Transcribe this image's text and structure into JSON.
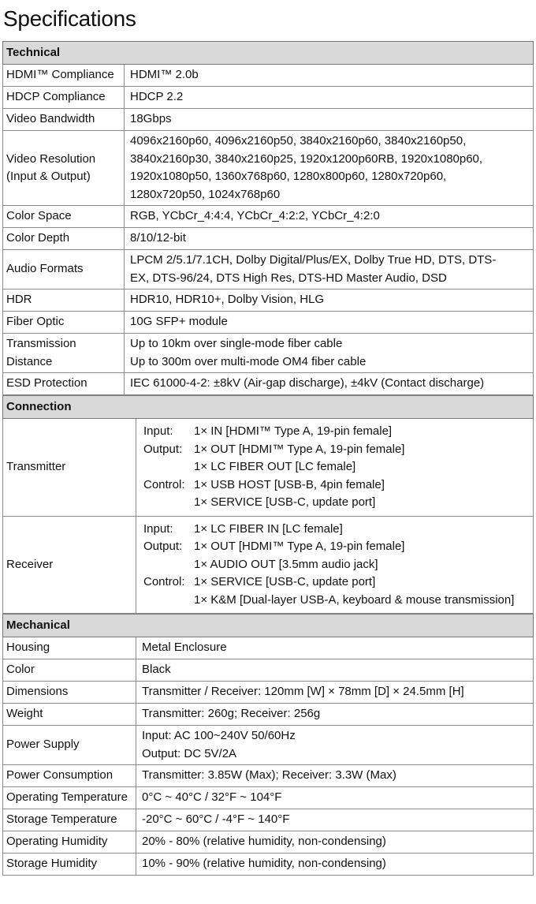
{
  "title": "Specifications",
  "sections": [
    {
      "title": "Technical",
      "rows": [
        {
          "label": [
            "HDMI™ Compliance"
          ],
          "lines": [
            "HDMI™ 2.0b"
          ]
        },
        {
          "label": [
            "HDCP Compliance"
          ],
          "lines": [
            "HDCP 2.2"
          ]
        },
        {
          "label": [
            "Video Bandwidth"
          ],
          "lines": [
            "18Gbps"
          ]
        },
        {
          "label": [
            "Video Resolution",
            "(Input & Output)"
          ],
          "lines": [
            "4096x2160p60, 4096x2160p50, 3840x2160p60, 3840x2160p50,",
            "3840x2160p30, 3840x2160p25, 1920x1200p60RB, 1920x1080p60,",
            "1920x1080p50, 1360x768p60, 1280x800p60, 1280x720p60,",
            "1280x720p50, 1024x768p60"
          ]
        },
        {
          "label": [
            "Color Space"
          ],
          "lines": [
            "RGB, YCbCr_4:4:4, YCbCr_4:2:2, YCbCr_4:2:0"
          ]
        },
        {
          "label": [
            "Color Depth"
          ],
          "lines": [
            "8/10/12-bit"
          ]
        },
        {
          "label": [
            "Audio Formats"
          ],
          "lines": [
            "LPCM 2/5.1/7.1CH, Dolby Digital/Plus/EX, Dolby True HD, DTS, DTS-",
            "EX, DTS-96/24, DTS High Res, DTS-HD Master Audio, DSD"
          ]
        },
        {
          "label": [
            "HDR"
          ],
          "lines": [
            "HDR10, HDR10+, Dolby Vision, HLG"
          ]
        },
        {
          "label": [
            "Fiber Optic"
          ],
          "lines": [
            "10G SFP+ module"
          ]
        },
        {
          "label": [
            "Transmission",
            "Distance"
          ],
          "lines": [
            "Up to 10km over single-mode fiber cable",
            "Up to 300m over multi-mode OM4 fiber cable"
          ]
        },
        {
          "label": [
            "ESD Protection"
          ],
          "lines": [
            "IEC 61000-4-2: ±8kV (Air-gap discharge), ±4kV (Contact discharge)"
          ]
        }
      ]
    },
    {
      "title": "Connection",
      "rows": [
        {
          "label": [
            "Transmitter"
          ],
          "lines": [
            {
              "key": "Input:",
              "text": "1× IN [HDMI™ Type A, 19-pin female]"
            },
            {
              "key": "Output:",
              "text": "1× OUT [HDMI™ Type A, 19-pin female]"
            },
            {
              "text": "1× LC FIBER OUT [LC female]"
            },
            {
              "key": "Control:",
              "text": "1× USB HOST [USB-B, 4pin female]"
            },
            {
              "text": "1× SERVICE [USB-C, update port]"
            }
          ]
        },
        {
          "label": [
            "Receiver"
          ],
          "lines": [
            {
              "key": "Input:",
              "text": "1× LC FIBER IN [LC female]"
            },
            {
              "key": "Output:",
              "text": "1× OUT [HDMI™ Type A, 19-pin female]"
            },
            {
              "text": "1× AUDIO OUT [3.5mm audio jack]"
            },
            {
              "key": "Control:",
              "text": "1× SERVICE [USB-C, update port]"
            },
            {
              "text": "1× K&M [Dual-layer USB-A, keyboard & mouse transmission]"
            }
          ]
        }
      ]
    },
    {
      "title": "Mechanical",
      "rows": [
        {
          "label": [
            "Housing"
          ],
          "lines": [
            "Metal Enclosure"
          ]
        },
        {
          "label": [
            "Color"
          ],
          "lines": [
            "Black"
          ]
        },
        {
          "label": [
            "Dimensions"
          ],
          "lines": [
            "Transmitter / Receiver: 120mm [W] × 78mm [D] × 24.5mm [H]"
          ]
        },
        {
          "label": [
            "Weight"
          ],
          "lines": [
            "Transmitter: 260g; Receiver: 256g"
          ]
        },
        {
          "label": [
            "Power Supply"
          ],
          "lines": [
            "Input: AC 100~240V 50/60Hz",
            "Output: DC 5V/2A"
          ]
        },
        {
          "label": [
            "Power Consumption"
          ],
          "lines": [
            "Transmitter: 3.85W (Max); Receiver: 3.3W (Max)"
          ]
        },
        {
          "label": [
            "Operating Temperature"
          ],
          "lines": [
            "0°C ~ 40°C / 32°F ~ 104°F"
          ]
        },
        {
          "label": [
            "Storage Temperature"
          ],
          "lines": [
            "-20°C ~ 60°C / -4°F ~ 140°F"
          ]
        },
        {
          "label": [
            "Operating Humidity"
          ],
          "lines": [
            "20% - 80% (relative humidity, non-condensing)"
          ]
        },
        {
          "label": [
            "Storage Humidity"
          ],
          "lines": [
            "10% - 90% (relative humidity, non-condensing)"
          ]
        }
      ]
    }
  ]
}
